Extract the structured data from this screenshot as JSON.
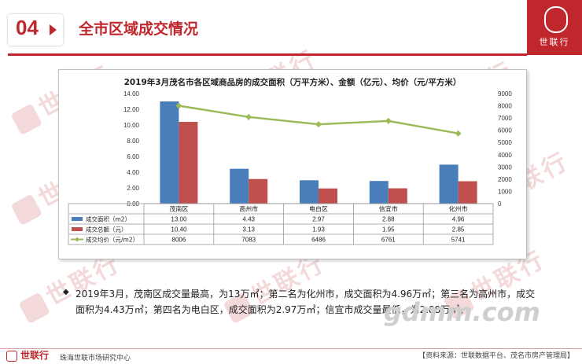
{
  "header": {
    "section_number": "04",
    "title": "全市区域成交情况",
    "brand": "世联行"
  },
  "watermark": {
    "text": "世联行"
  },
  "chart_data": {
    "type": "bar",
    "title": "2019年3月茂名市各区域商品房的成交面积（万平方米）、金额（亿元）、均价（元/平方米）",
    "categories": [
      "茂南区",
      "高州市",
      "电白区",
      "信宜市",
      "化州市"
    ],
    "series": [
      {
        "name": "成交面积（m2）",
        "type": "bar",
        "axis": "left",
        "color": "#4a7ebb",
        "values": [
          13.0,
          4.43,
          2.97,
          2.88,
          4.96
        ]
      },
      {
        "name": "成交总额（元）",
        "type": "bar",
        "axis": "left",
        "color": "#c0504d",
        "values": [
          10.4,
          3.13,
          1.93,
          1.95,
          2.85
        ]
      },
      {
        "name": "成交均价（元/m2）",
        "type": "line",
        "axis": "right",
        "color": "#9bbb59",
        "values": [
          8006,
          7083,
          6486,
          6761,
          5741
        ]
      }
    ],
    "table_values": [
      [
        "13.00",
        "4.43",
        "2.97",
        "2.88",
        "4.96"
      ],
      [
        "10.40",
        "3.13",
        "1.93",
        "1.95",
        "2.85"
      ],
      [
        "8006",
        "7083",
        "6486",
        "6761",
        "5741"
      ]
    ],
    "left_axis": {
      "ylim": [
        0,
        14
      ],
      "ticks": [
        "0.00",
        "2.00",
        "4.00",
        "6.00",
        "8.00",
        "10.00",
        "12.00",
        "14.00"
      ]
    },
    "right_axis": {
      "ylim": [
        0,
        9000
      ],
      "ticks": [
        "0",
        "1000",
        "2000",
        "3000",
        "4000",
        "5000",
        "6000",
        "7000",
        "8000",
        "9000"
      ]
    },
    "grid": false,
    "legend": "data-table"
  },
  "summary": {
    "bullet": "◆",
    "text": "2019年3月，茂南区成交量最高，为13万㎡；第二名为化州市，成交面积为4.96万㎡；第三名为高州市，成交面积为4.43万㎡；第四名为电白区，成交面积为2.97万㎡；信宜市成交量最低，为2.88万㎡。"
  },
  "site_watermark": "gdmm.com",
  "footer": {
    "brand": "世联行",
    "org": "珠海世联市场研究中心",
    "source": "【资料来源：世联数据平台、茂名市房产管理局】"
  }
}
